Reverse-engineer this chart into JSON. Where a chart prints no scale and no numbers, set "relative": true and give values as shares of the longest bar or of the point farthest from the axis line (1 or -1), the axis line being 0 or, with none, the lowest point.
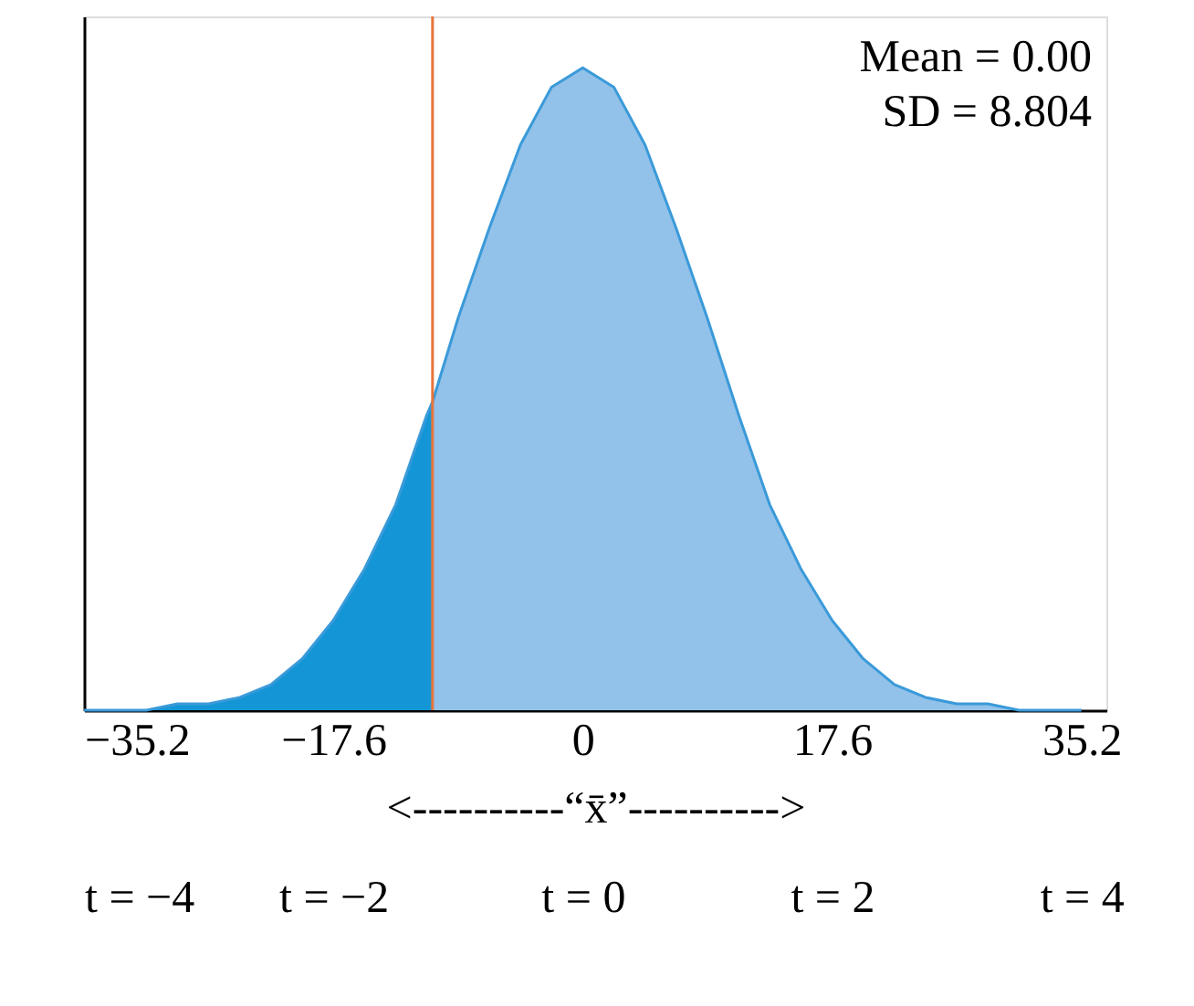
{
  "chart_data": {
    "type": "area",
    "relative": true,
    "xlabel": "<----------“x̄”---------->",
    "xlim": [
      -35.2,
      36.96
    ],
    "xticks": [
      {
        "value": -35.2,
        "label": "−35.2"
      },
      {
        "value": -17.6,
        "label": "−17.6"
      },
      0,
      17.6,
      35.2
    ],
    "x2lim": [
      -4,
      4.2
    ],
    "x2ticks": [
      {
        "value": -4,
        "label": "t = −4"
      },
      {
        "value": -2,
        "label": "t = −2"
      },
      {
        "value": 0,
        "label": "t = 0"
      },
      {
        "value": 2,
        "label": "t = 2"
      },
      {
        "value": 4,
        "label": "t = 4"
      }
    ],
    "series": [
      {
        "color": "#1496d6",
        "x": [
          -35.2,
          -33.0,
          -30.8,
          -28.6,
          -26.4,
          -24.2,
          -22.0,
          -19.8,
          -17.6,
          -15.4,
          -13.2,
          -11.0,
          -10.6
        ],
        "values": [
          0,
          0,
          0,
          0.01,
          0.01,
          0.02,
          0.04,
          0.08,
          0.14,
          0.22,
          0.32,
          0.46,
          0.48
        ]
      },
      {
        "color": "#92c1e9",
        "x": [
          -10.6,
          -8.8,
          -6.6,
          -4.4,
          -2.2,
          0,
          2.2,
          4.4,
          6.6,
          8.8,
          11.0,
          13.2,
          15.4,
          17.6,
          19.8,
          22.0,
          24.2,
          26.4,
          28.6,
          30.8,
          33.0,
          35.2
        ],
        "values": [
          0.48,
          0.61,
          0.75,
          0.88,
          0.97,
          1,
          0.97,
          0.88,
          0.75,
          0.61,
          0.46,
          0.32,
          0.22,
          0.14,
          0.08,
          0.04,
          0.02,
          0.01,
          0.01,
          0,
          0,
          0
        ]
      }
    ],
    "ref_lines": [
      {
        "axis": "x",
        "value": -10.6,
        "color": "#e8743b"
      }
    ],
    "annotations": [
      "Mean = 0.00",
      "SD = 8.804"
    ],
    "grid": false
  }
}
